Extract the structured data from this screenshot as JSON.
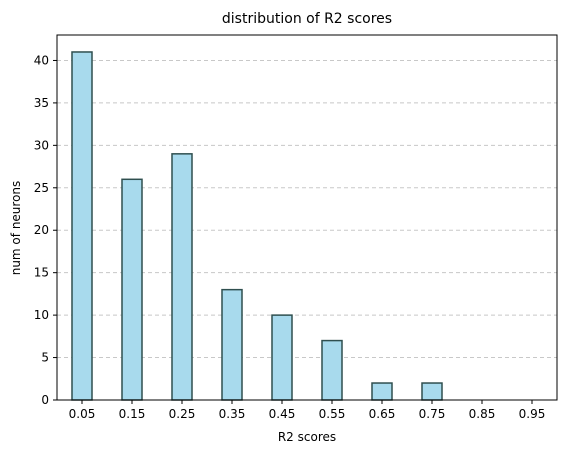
{
  "chart_data": {
    "type": "bar",
    "title": "distribution of R2 scores",
    "xlabel": "R2 scores",
    "ylabel": "num of neurons",
    "categories": [
      "0.05",
      "0.15",
      "0.25",
      "0.35",
      "0.45",
      "0.55",
      "0.65",
      "0.75",
      "0.85",
      "0.95"
    ],
    "x": [
      0.05,
      0.15,
      0.25,
      0.35,
      0.45,
      0.55,
      0.65,
      0.75,
      0.85,
      0.95
    ],
    "values": [
      41,
      26,
      29,
      13,
      10,
      7,
      2,
      2,
      0,
      0
    ],
    "ylim": [
      0,
      43
    ],
    "yticks": [
      0,
      5,
      10,
      15,
      20,
      25,
      30,
      35,
      40
    ],
    "grid": "y-dashed",
    "bar_fill": "#a8daed",
    "bar_edge": "#2f4f4f",
    "grid_color": "#c8c8c8"
  }
}
